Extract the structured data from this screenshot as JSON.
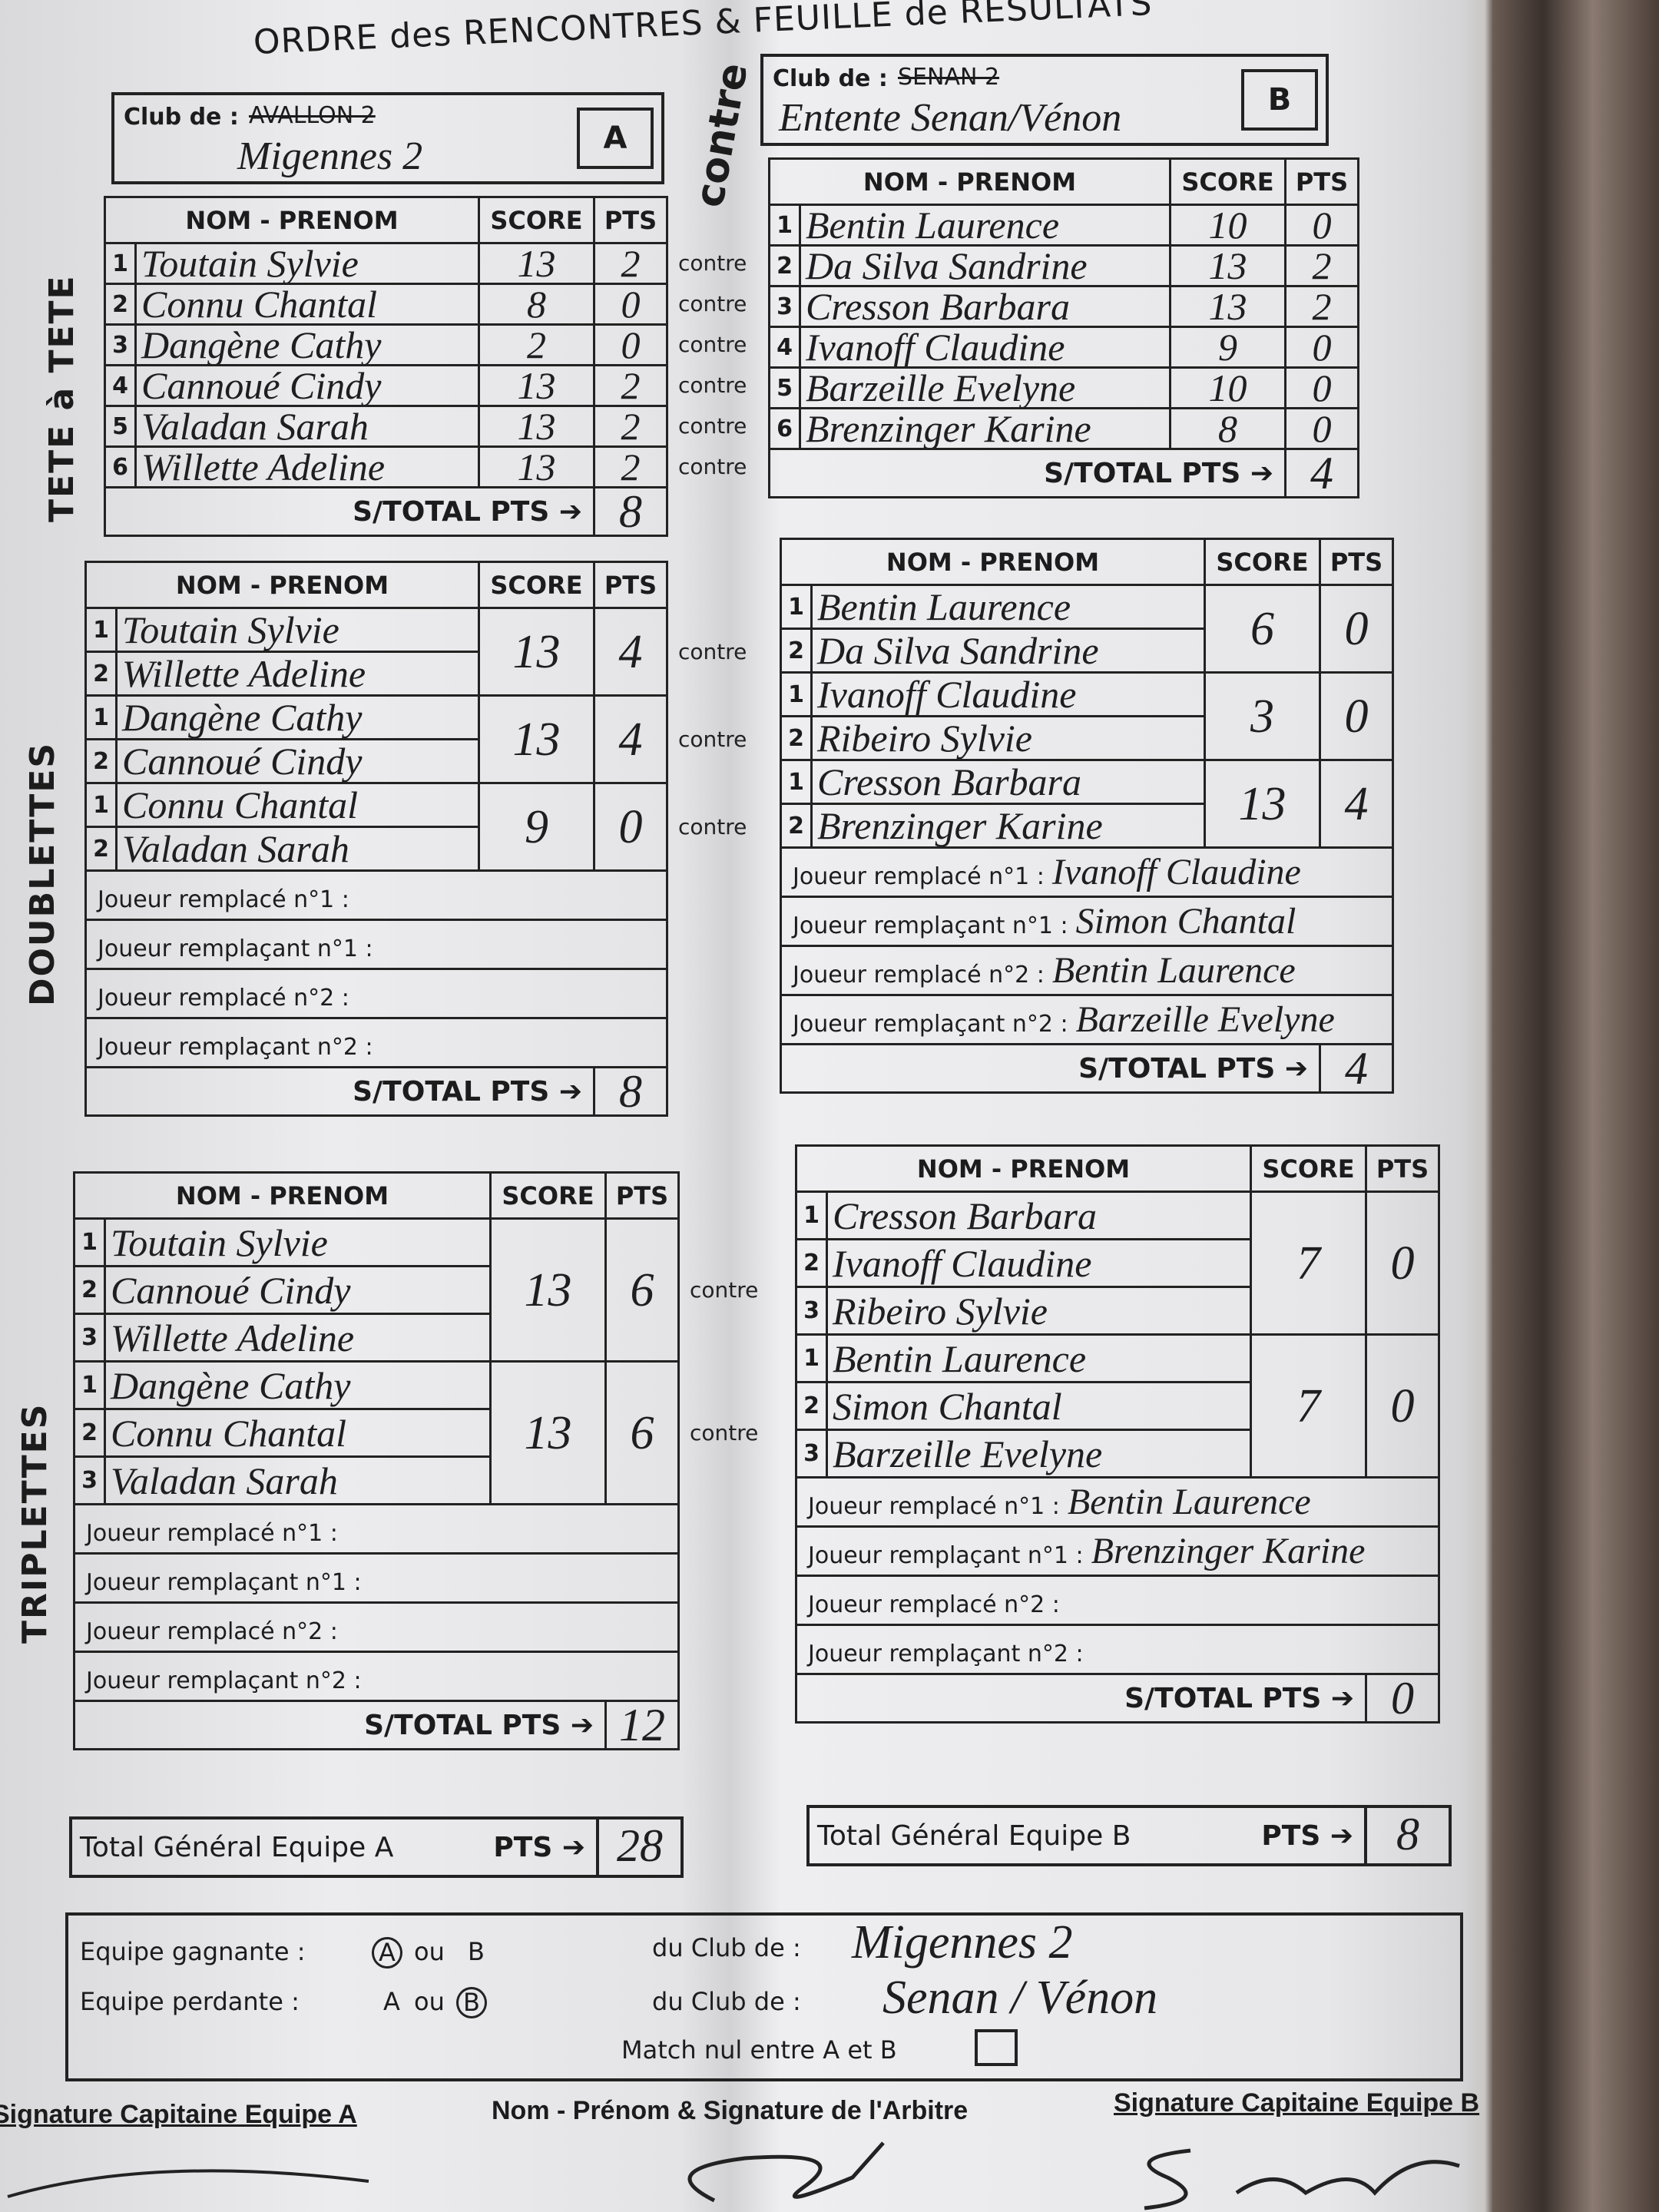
{
  "title": "ORDRE des RENCONTRES & FEUILLE de RESULTATS",
  "contre_big": "contre",
  "headers": {
    "nom": "NOM - PRENOM",
    "score": "SCORE",
    "pts": "PTS"
  },
  "contre": "contre",
  "subtotal_label": "S/TOTAL PTS ➔",
  "side_labels": {
    "tete": "TETE à TETE",
    "doublettes": "DOUBLETTES",
    "triplettes": "TRIPLETTES"
  },
  "club_a": {
    "label": "Club de :",
    "printed": "AVALLON 2",
    "handwritten": "Migennes 2",
    "letter": "A"
  },
  "club_b": {
    "label": "Club de :",
    "printed": "SENAN 2",
    "handwritten": "Entente Senan/Vénon",
    "letter": "B"
  },
  "repl_labels": [
    "Joueur remplacé n°1 :",
    "Joueur remplaçant n°1 :",
    "Joueur remplacé n°2 :",
    "Joueur remplaçant n°2 :"
  ],
  "tete_a": {
    "groups": [
      {
        "players": [
          {
            "num": "1",
            "name": "Toutain Sylvie"
          }
        ],
        "score": "13",
        "pts": "2"
      },
      {
        "players": [
          {
            "num": "2",
            "name": "Connu Chantal"
          }
        ],
        "score": "8",
        "pts": "0"
      },
      {
        "players": [
          {
            "num": "3",
            "name": "Dangène Cathy"
          }
        ],
        "score": "2",
        "pts": "0"
      },
      {
        "players": [
          {
            "num": "4",
            "name": "Cannoué Cindy"
          }
        ],
        "score": "13",
        "pts": "2"
      },
      {
        "players": [
          {
            "num": "5",
            "name": "Valadan Sarah"
          }
        ],
        "score": "13",
        "pts": "2"
      },
      {
        "players": [
          {
            "num": "6",
            "name": "Willette Adeline"
          }
        ],
        "score": "13",
        "pts": "2"
      }
    ],
    "subtotal": "8"
  },
  "tete_b": {
    "groups": [
      {
        "players": [
          {
            "num": "1",
            "name": "Bentin Laurence"
          }
        ],
        "score": "10",
        "pts": "0"
      },
      {
        "players": [
          {
            "num": "2",
            "name": "Da Silva Sandrine"
          }
        ],
        "score": "13",
        "pts": "2"
      },
      {
        "players": [
          {
            "num": "3",
            "name": "Cresson Barbara"
          }
        ],
        "score": "13",
        "pts": "2"
      },
      {
        "players": [
          {
            "num": "4",
            "name": "Ivanoff Claudine"
          }
        ],
        "score": "9",
        "pts": "0"
      },
      {
        "players": [
          {
            "num": "5",
            "name": "Barzeille Evelyne"
          }
        ],
        "score": "10",
        "pts": "0"
      },
      {
        "players": [
          {
            "num": "6",
            "name": "Brenzinger Karine"
          }
        ],
        "score": "8",
        "pts": "0"
      }
    ],
    "subtotal": "4"
  },
  "doub_a": {
    "groups": [
      {
        "players": [
          {
            "num": "1",
            "name": "Toutain Sylvie"
          },
          {
            "num": "2",
            "name": "Willette Adeline"
          }
        ],
        "score": "13",
        "pts": "4"
      },
      {
        "players": [
          {
            "num": "1",
            "name": "Dangène Cathy"
          },
          {
            "num": "2",
            "name": "Cannoué Cindy"
          }
        ],
        "score": "13",
        "pts": "4"
      },
      {
        "players": [
          {
            "num": "1",
            "name": "Connu Chantal"
          },
          {
            "num": "2",
            "name": "Valadan Sarah"
          }
        ],
        "score": "9",
        "pts": "0"
      }
    ],
    "replacements": [
      "",
      "",
      "",
      ""
    ],
    "subtotal": "8"
  },
  "doub_b": {
    "groups": [
      {
        "players": [
          {
            "num": "1",
            "name": "Bentin Laurence"
          },
          {
            "num": "2",
            "name": "Da Silva Sandrine"
          }
        ],
        "score": "6",
        "pts": "0"
      },
      {
        "players": [
          {
            "num": "1",
            "name": "Ivanoff Claudine"
          },
          {
            "num": "2",
            "name": "Ribeiro Sylvie"
          }
        ],
        "score": "3",
        "pts": "0"
      },
      {
        "players": [
          {
            "num": "1",
            "name": "Cresson Barbara"
          },
          {
            "num": "2",
            "name": "Brenzinger Karine"
          }
        ],
        "score": "13",
        "pts": "4"
      }
    ],
    "replacements": [
      "Ivanoff Claudine",
      "Simon Chantal",
      "Bentin Laurence",
      "Barzeille Evelyne"
    ],
    "subtotal": "4"
  },
  "trip_a": {
    "groups": [
      {
        "players": [
          {
            "num": "1",
            "name": "Toutain Sylvie"
          },
          {
            "num": "2",
            "name": "Cannoué Cindy"
          },
          {
            "num": "3",
            "name": "Willette Adeline"
          }
        ],
        "score": "13",
        "pts": "6"
      },
      {
        "players": [
          {
            "num": "1",
            "name": "Dangène Cathy"
          },
          {
            "num": "2",
            "name": "Connu Chantal"
          },
          {
            "num": "3",
            "name": "Valadan Sarah"
          }
        ],
        "score": "13",
        "pts": "6"
      }
    ],
    "replacements": [
      "",
      "",
      "",
      ""
    ],
    "subtotal": "12"
  },
  "trip_b": {
    "groups": [
      {
        "players": [
          {
            "num": "1",
            "name": "Cresson Barbara"
          },
          {
            "num": "2",
            "name": "Ivanoff Claudine"
          },
          {
            "num": "3",
            "name": "Ribeiro Sylvie"
          }
        ],
        "score": "7",
        "pts": "0"
      },
      {
        "players": [
          {
            "num": "1",
            "name": "Bentin Laurence"
          },
          {
            "num": "2",
            "name": "Simon Chantal"
          },
          {
            "num": "3",
            "name": "Barzeille Evelyne"
          }
        ],
        "score": "7",
        "pts": "0"
      }
    ],
    "replacements": [
      "Bentin Laurence",
      "Brenzinger Karine",
      "",
      ""
    ],
    "subtotal": "0"
  },
  "total_a": {
    "label": "Total Général Equipe A",
    "pts_label": "PTS ➔",
    "value": "28"
  },
  "total_b": {
    "label": "Total Général Equipe B",
    "pts_label": "PTS ➔",
    "value": "8"
  },
  "result": {
    "winner_label": "Equipe gagnante :",
    "winner_a": "A",
    "winner_ou": "ou",
    "winner_b": "B",
    "loser_label": "Equipe perdante :",
    "loser_a": "A",
    "loser_ou": "ou",
    "loser_b": "B",
    "club_label": "du Club de :",
    "winner_club": "Migennes 2",
    "loser_club": "Senan / Vénon",
    "draw_label": "Match nul entre A et B"
  },
  "signatures": {
    "captain_a": "Signature Capitaine Equipe A",
    "referee": "Nom - Prénom & Signature de l'Arbitre",
    "captain_b": "Signature Capitaine Equipe B"
  }
}
